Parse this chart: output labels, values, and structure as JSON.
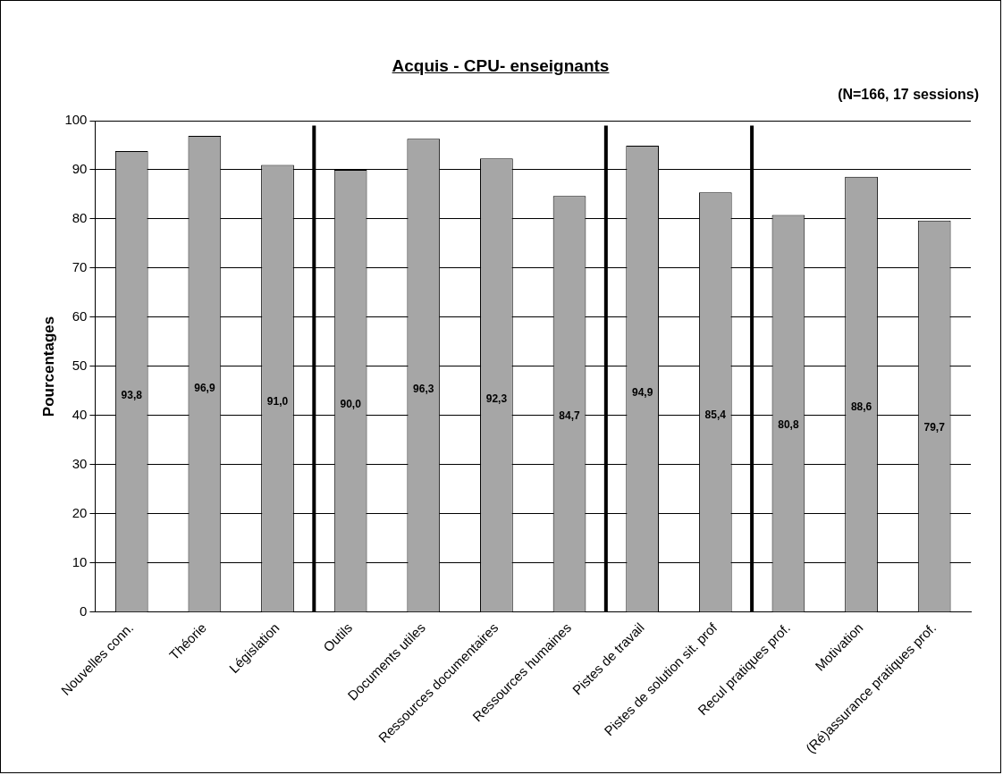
{
  "chart_data": {
    "type": "bar",
    "title": "Acquis - CPU- enseignants",
    "subtitle": "(N=166, 17 sessions)",
    "ylabel": "Pourcentages",
    "categories": [
      "Nouvelles conn.",
      "Théorie",
      "Législation",
      "Outils",
      "Documents utiles",
      "Ressources documentaires",
      "Ressources humaines",
      "Pistes de travail",
      "Pistes de solution sit. prof",
      "Recul pratiques prof.",
      "Motivation",
      "(Ré)assurance pratiques prof."
    ],
    "values": [
      93.8,
      96.9,
      91.0,
      90.0,
      96.3,
      92.3,
      84.7,
      94.9,
      85.4,
      80.8,
      88.6,
      79.7
    ],
    "value_labels": [
      "93,8",
      "96,9",
      "91,0",
      "90,0",
      "96,3",
      "92,3",
      "84,7",
      "94,9",
      "85,4",
      "80,8",
      "88,6",
      "79,7"
    ],
    "color": "#a6a6a6",
    "ylim": [
      0,
      100
    ],
    "yticks": [
      0,
      10,
      20,
      30,
      40,
      50,
      60,
      70,
      80,
      90,
      100
    ],
    "grid": "y",
    "legend": false
  }
}
